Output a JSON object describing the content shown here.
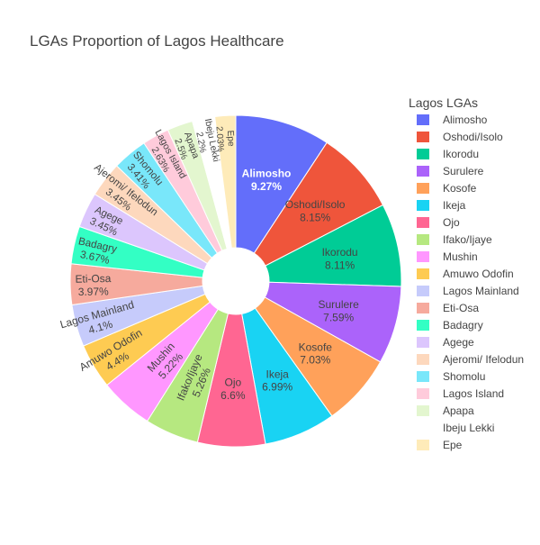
{
  "chart_data": {
    "type": "pie",
    "hole": true,
    "title": "LGAs Proportion of Lagos Healthcare",
    "legend_title": "Lagos LGAs",
    "legend_position": "right",
    "slices": [
      {
        "label": "Alimosho",
        "value": 9.27,
        "text": "9.27%",
        "color": "#636efa"
      },
      {
        "label": "Oshodi/Isolo",
        "value": 8.15,
        "text": "8.15%",
        "color": "#ef553b"
      },
      {
        "label": "Ikorodu",
        "value": 8.11,
        "text": "8.11%",
        "color": "#00cc96"
      },
      {
        "label": "Surulere",
        "value": 7.59,
        "text": "7.59%",
        "color": "#ab63fa"
      },
      {
        "label": "Kosofe",
        "value": 7.03,
        "text": "7.03%",
        "color": "#ffa15a"
      },
      {
        "label": "Ikeja",
        "value": 6.99,
        "text": "6.99%",
        "color": "#19d3f3"
      },
      {
        "label": "Ojo",
        "value": 6.6,
        "text": "6.6%",
        "color": "#ff6692"
      },
      {
        "label": "Ifako/Ijaye",
        "value": 5.26,
        "text": "5.26%",
        "color": "#b6e880"
      },
      {
        "label": "Mushin",
        "value": 5.22,
        "text": "5.22%",
        "color": "#ff97ff"
      },
      {
        "label": "Amuwo Odofin",
        "value": 4.4,
        "text": "4.4%",
        "color": "#fecb52"
      },
      {
        "label": "Lagos Mainland",
        "value": 4.1,
        "text": "4.1%",
        "color": "#c6cbfb"
      },
      {
        "label": "Eti-Osa",
        "value": 3.97,
        "text": "3.97%",
        "color": "#f6aa9d"
      },
      {
        "label": "Badagry",
        "value": 3.67,
        "text": "3.67%",
        "color": "#33ffc4"
      },
      {
        "label": "Agege",
        "value": 3.45,
        "text": "3.45%",
        "color": "#dcc6fd"
      },
      {
        "label": "Ajeromi/ Ifelodun",
        "value": 3.45,
        "text": "3.45%",
        "color": "#fdd8bd"
      },
      {
        "label": "Shomolu",
        "value": 3.41,
        "text": "3.41%",
        "color": "#79e7fa"
      },
      {
        "label": "Lagos Island",
        "value": 2.63,
        "text": "2.63%",
        "color": "#ffcbdb"
      },
      {
        "label": "Apapa",
        "value": 2.5,
        "text": "2.5%",
        "color": "#e3f6cf"
      },
      {
        "label": "Ibeju Lekki",
        "value": 2.2,
        "text": "2.2%",
        "color": "#ffffff"
      },
      {
        "label": "Epe",
        "value": 2.03,
        "text": "2.03%",
        "color": "#feebb9"
      }
    ]
  }
}
